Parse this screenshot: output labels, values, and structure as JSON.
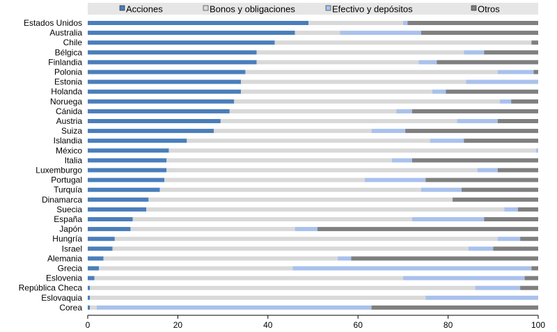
{
  "chart_data": {
    "type": "bar",
    "orientation": "horizontal",
    "stacked": true,
    "categories": [
      "Estados Unidos",
      "Australia",
      "Chile",
      "Bélgica",
      "Finlandia",
      "Polonia",
      "Estonia",
      "Holanda",
      "Noruega",
      "Cánida",
      "Austria",
      "Suiza",
      "Islandia",
      "México",
      "Italia",
      "Luxemburgo",
      "Portugal",
      "Turquía",
      "Dinamarca",
      "Suecia",
      "España",
      "Japón",
      "Hungría",
      "Israel",
      "Alemania",
      "Grecia",
      "Eslovenia",
      "República Checa",
      "Eslovaquia",
      "Corea"
    ],
    "series": [
      {
        "name": "Acciones",
        "color": "#4a7ebb",
        "values": [
          49,
          46,
          41.5,
          37.5,
          37.5,
          35,
          34,
          34,
          32.5,
          31.5,
          29.5,
          28,
          22,
          18,
          17.5,
          17.5,
          17,
          16,
          13.5,
          13,
          10,
          9.5,
          6,
          5.5,
          3.5,
          2.5,
          1.5,
          0.5,
          0.5,
          0.5
        ]
      },
      {
        "name": "Bonos y obligaciones",
        "color": "#d9d9d9",
        "values": [
          21,
          10,
          57,
          46,
          36,
          56,
          50,
          42.5,
          59,
          37,
          52.5,
          35,
          54,
          81.5,
          50,
          69,
          44.5,
          58,
          67.5,
          79.5,
          62,
          36.5,
          85,
          79,
          52,
          43,
          68.5,
          85.5,
          74.5,
          1.5
        ]
      },
      {
        "name": "Efectivo y depósitos",
        "color": "#a9c1ec",
        "values": [
          1,
          18,
          0,
          4.5,
          4,
          8,
          16,
          3,
          2.5,
          3.5,
          9,
          7.5,
          7.5,
          0.5,
          4.5,
          4.5,
          13.5,
          9,
          0,
          3,
          16,
          5,
          5,
          5.5,
          3,
          53,
          27,
          10,
          25,
          61
        ]
      },
      {
        "name": "Otros",
        "color": "#7f7f7f",
        "values": [
          29,
          26,
          1.5,
          12,
          22.5,
          1,
          0,
          20.5,
          6,
          28,
          9,
          29.5,
          16.5,
          0,
          28,
          9,
          25,
          17,
          19,
          4.5,
          12,
          49,
          4,
          10,
          41.5,
          1.5,
          3,
          4,
          0,
          37
        ]
      }
    ],
    "x_ticks": [
      "0",
      "20",
      "40",
      "60",
      "80",
      "100"
    ],
    "xlim": [
      0,
      100
    ],
    "grid": false,
    "legend_position": "top",
    "title": "",
    "xlabel": "",
    "ylabel": ""
  }
}
